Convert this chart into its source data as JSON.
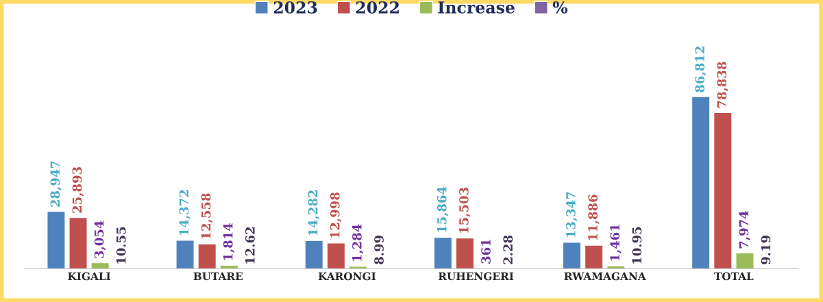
{
  "chart_data": {
    "type": "bar",
    "categories": [
      "KIGALI",
      "BUTARE",
      "KARONGI",
      "RUHENGERI",
      "RWAMAGANA",
      "TOTAL"
    ],
    "series": [
      {
        "name": "2023",
        "color": "#4f81bd",
        "values": [
          28947,
          14372,
          14282,
          15864,
          13347,
          86812
        ],
        "value_labels": [
          "28,947",
          "14,372",
          "14,282",
          "15,864",
          "13,347",
          "86,812"
        ]
      },
      {
        "name": "2022",
        "color": "#c0504d",
        "values": [
          25893,
          12558,
          12998,
          15503,
          11886,
          78838
        ],
        "value_labels": [
          "25,893",
          "12,558",
          "12,998",
          "15,503",
          "11,886",
          "78,838"
        ]
      },
      {
        "name": "Increase",
        "color": "#9bbb59",
        "values": [
          3054,
          1814,
          1284,
          361,
          1461,
          7974
        ],
        "value_labels": [
          "3,054",
          "1,814",
          "1,284",
          "361",
          "1,461",
          "7,974"
        ]
      },
      {
        "name": "%",
        "color": "#8064a2",
        "values": [
          10.55,
          12.62,
          8.99,
          2.28,
          10.95,
          9.19
        ],
        "value_labels": [
          "10.55",
          "12.62",
          "8.99",
          "2.28",
          "10.95",
          "9.19"
        ]
      }
    ],
    "legend": "top",
    "grid": false
  }
}
